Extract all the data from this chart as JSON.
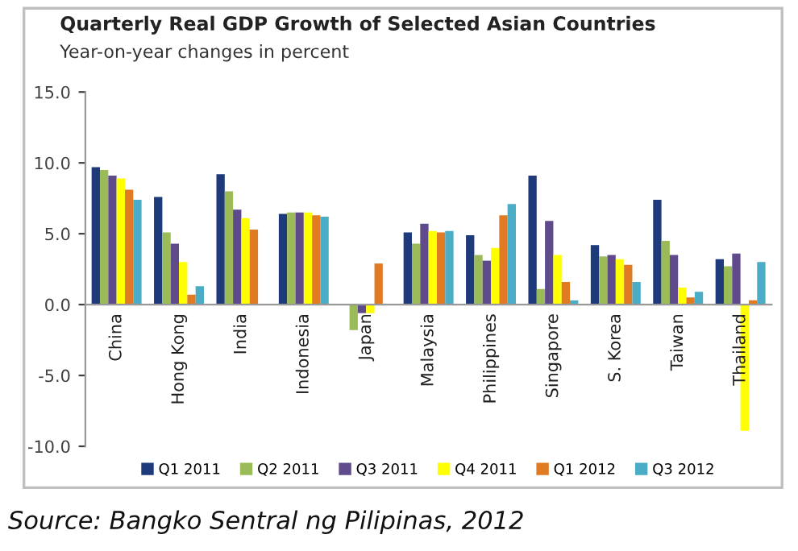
{
  "chart_data": {
    "type": "bar",
    "title": "Quarterly Real GDP Growth of Selected Asian Countries",
    "subtitle": "Year-on-year changes in percent",
    "categories": [
      "China",
      "Hong Kong",
      "India",
      "Indonesia",
      "Japan",
      "Malaysia",
      "Philippines",
      "Singapore",
      "S. Korea",
      "Taiwan",
      "Thailand"
    ],
    "series": [
      {
        "name": "Q1 2011",
        "color": "#1f3a7a",
        "values": [
          9.7,
          7.6,
          9.2,
          6.4,
          null,
          5.1,
          4.9,
          9.1,
          4.2,
          7.4,
          3.2
        ]
      },
      {
        "name": "Q2 2011",
        "color": "#9bbb59",
        "values": [
          9.5,
          5.1,
          8.0,
          6.5,
          -1.8,
          4.3,
          3.5,
          1.1,
          3.4,
          4.5,
          2.7
        ]
      },
      {
        "name": "Q3 2011",
        "color": "#5f4b8b",
        "values": [
          9.1,
          4.3,
          6.7,
          6.5,
          -0.6,
          5.7,
          3.1,
          5.9,
          3.5,
          3.5,
          3.6
        ]
      },
      {
        "name": "Q4 2011",
        "color": "#ffff00",
        "values": [
          8.9,
          3.0,
          6.1,
          6.5,
          -0.6,
          5.2,
          4.0,
          3.5,
          3.2,
          1.2,
          -8.9
        ]
      },
      {
        "name": "Q1 2012",
        "color": "#e07b24",
        "values": [
          8.1,
          0.7,
          5.3,
          6.3,
          2.9,
          5.1,
          6.3,
          1.6,
          2.8,
          0.5,
          0.3
        ]
      },
      {
        "name": "Q3 2012",
        "color": "#4bacc6",
        "values": [
          7.4,
          1.3,
          null,
          6.2,
          null,
          5.2,
          7.1,
          0.3,
          1.6,
          0.9,
          3.0
        ]
      }
    ],
    "ylim": [
      -10,
      15
    ],
    "yticks": [
      {
        "value": -10,
        "label": "-10.0"
      },
      {
        "value": -5,
        "label": "-5.0"
      },
      {
        "value": 0,
        "label": "0.0"
      },
      {
        "value": 5,
        "label": "5.0"
      },
      {
        "value": 10,
        "label": "10.0"
      },
      {
        "value": 15,
        "label": "15.0"
      }
    ],
    "grid": false,
    "legend": "bottom",
    "annotations": [
      "Source: Bangko Sentral ng Pilipinas, 2012"
    ]
  }
}
